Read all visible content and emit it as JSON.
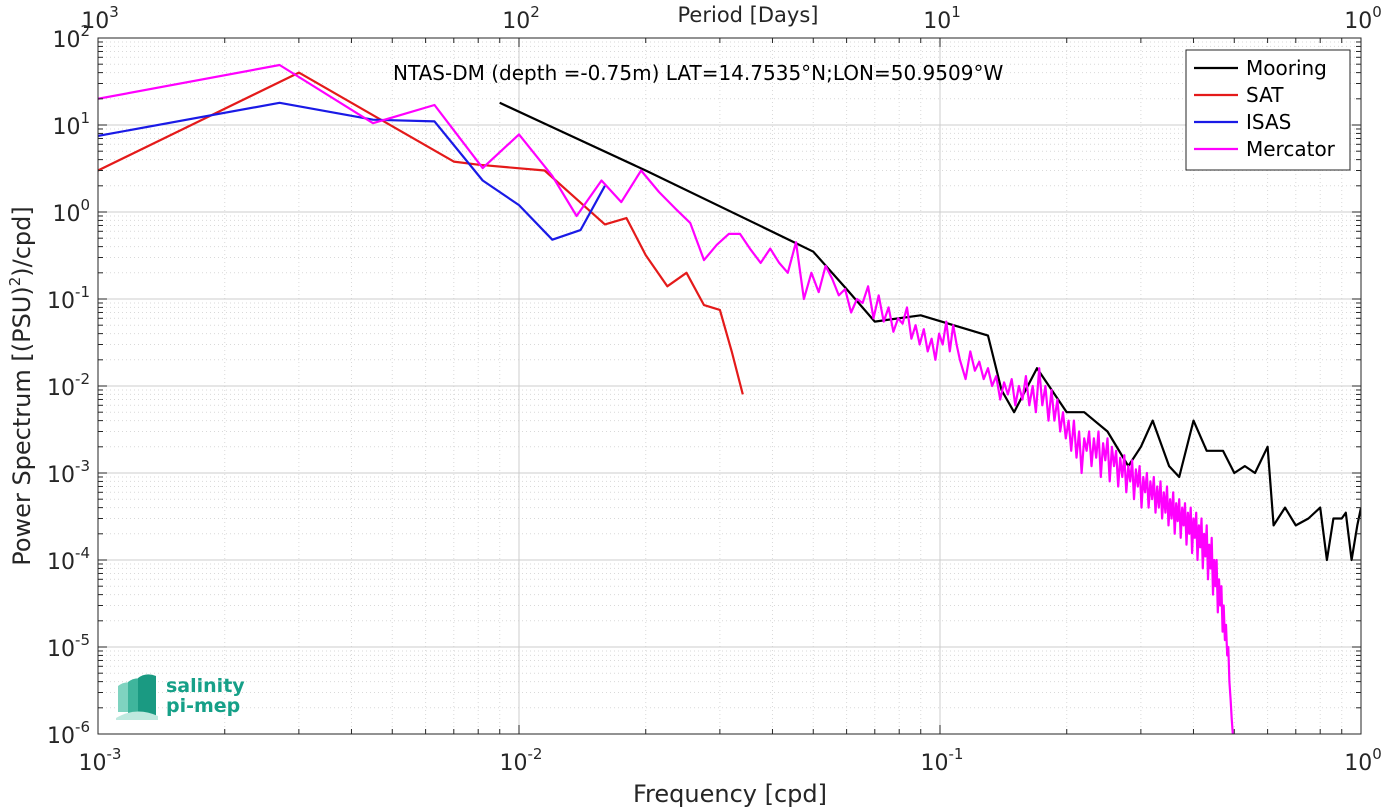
{
  "chart_data": {
    "type": "line",
    "scale": {
      "x": "log",
      "y": "log"
    },
    "xlabel": "Frequency [cpd]",
    "top_xlabel": "Period [Days]",
    "ylabel_prefix": "Power Spectrum [(PSU)",
    "ylabel_exp": "2",
    "ylabel_suffix": ")/cpd]",
    "annotation": "NTAS-DM (depth =-0.75m) LAT=14.7535°N;LON=50.9509°W",
    "xlim": [
      0.001,
      1
    ],
    "ylim": [
      1e-06,
      100
    ],
    "grid": true,
    "minor_grid": true,
    "legend_position": "top-right",
    "x_ticks": [
      {
        "base": "10",
        "exp": "-3"
      },
      {
        "base": "10",
        "exp": "-2"
      },
      {
        "base": "10",
        "exp": "-1"
      },
      {
        "base": "10",
        "exp": "0"
      }
    ],
    "top_ticks": [
      {
        "base": "10",
        "exp": "3"
      },
      {
        "base": "10",
        "exp": "2"
      },
      {
        "base": "10",
        "exp": "1"
      },
      {
        "base": "10",
        "exp": "0"
      }
    ],
    "y_ticks": [
      {
        "base": "10",
        "exp": "-6"
      },
      {
        "base": "10",
        "exp": "-5"
      },
      {
        "base": "10",
        "exp": "-4"
      },
      {
        "base": "10",
        "exp": "-3"
      },
      {
        "base": "10",
        "exp": "-2"
      },
      {
        "base": "10",
        "exp": "-1"
      },
      {
        "base": "10",
        "exp": "0"
      },
      {
        "base": "10",
        "exp": "1"
      },
      {
        "base": "10",
        "exp": "2"
      }
    ],
    "series": [
      {
        "name": "Mooring",
        "color": "#000000",
        "points": [
          [
            0.009,
            18
          ],
          [
            0.02,
            3.0
          ],
          [
            0.045,
            0.45
          ],
          [
            0.05,
            0.35
          ],
          [
            0.06,
            0.13
          ],
          [
            0.07,
            0.055
          ],
          [
            0.09,
            0.065
          ],
          [
            0.13,
            0.038
          ],
          [
            0.14,
            0.009
          ],
          [
            0.15,
            0.005
          ],
          [
            0.17,
            0.016
          ],
          [
            0.2,
            0.005
          ],
          [
            0.22,
            0.005
          ],
          [
            0.25,
            0.003
          ],
          [
            0.28,
            0.0012
          ],
          [
            0.3,
            0.002
          ],
          [
            0.32,
            0.004
          ],
          [
            0.35,
            0.0012
          ],
          [
            0.37,
            0.0009
          ],
          [
            0.4,
            0.004
          ],
          [
            0.43,
            0.0018
          ],
          [
            0.47,
            0.0018
          ],
          [
            0.5,
            0.001
          ],
          [
            0.53,
            0.0012
          ],
          [
            0.56,
            0.001
          ],
          [
            0.6,
            0.002
          ],
          [
            0.62,
            0.00025
          ],
          [
            0.66,
            0.0004
          ],
          [
            0.7,
            0.00025
          ],
          [
            0.75,
            0.0003
          ],
          [
            0.8,
            0.0004
          ],
          [
            0.83,
            0.0001
          ],
          [
            0.86,
            0.0003
          ],
          [
            0.9,
            0.0003
          ],
          [
            0.92,
            0.00035
          ],
          [
            0.95,
            0.0001
          ],
          [
            0.98,
            0.00025
          ],
          [
            1.0,
            0.0004
          ]
        ]
      },
      {
        "name": "SAT",
        "color": "#e41a1a",
        "points": [
          [
            0.001,
            3.0
          ],
          [
            0.003,
            40
          ],
          [
            0.007,
            3.8
          ],
          [
            0.008,
            3.5
          ],
          [
            0.0115,
            3.0
          ],
          [
            0.0135,
            1.5
          ],
          [
            0.016,
            0.72
          ],
          [
            0.018,
            0.85
          ],
          [
            0.02,
            0.32
          ],
          [
            0.0225,
            0.14
          ],
          [
            0.025,
            0.2
          ],
          [
            0.0275,
            0.085
          ],
          [
            0.03,
            0.075
          ],
          [
            0.032,
            0.025
          ],
          [
            0.034,
            0.008
          ]
        ]
      },
      {
        "name": "ISAS",
        "color": "#1a1ae6",
        "points": [
          [
            0.001,
            7.5
          ],
          [
            0.0027,
            18
          ],
          [
            0.0045,
            11.5
          ],
          [
            0.0063,
            11
          ],
          [
            0.0082,
            2.3
          ],
          [
            0.01,
            1.2
          ],
          [
            0.012,
            0.48
          ],
          [
            0.014,
            0.62
          ],
          [
            0.016,
            2.0
          ]
        ]
      },
      {
        "name": "Mercator",
        "color": "#ff00ff",
        "points": [
          [
            0.001,
            20
          ],
          [
            0.0027,
            49
          ],
          [
            0.0045,
            10.5
          ],
          [
            0.0063,
            17
          ],
          [
            0.0082,
            3.2
          ],
          [
            0.01,
            7.8
          ],
          [
            0.012,
            2.6
          ],
          [
            0.0137,
            0.9
          ],
          [
            0.0157,
            2.3
          ],
          [
            0.0175,
            1.3
          ],
          [
            0.0195,
            3.0
          ],
          [
            0.0215,
            1.7
          ],
          [
            0.0235,
            1.1
          ],
          [
            0.0255,
            0.75
          ],
          [
            0.0275,
            0.28
          ],
          [
            0.0295,
            0.42
          ],
          [
            0.0315,
            0.56
          ],
          [
            0.0335,
            0.56
          ],
          [
            0.0355,
            0.37
          ],
          [
            0.0375,
            0.26
          ],
          [
            0.0395,
            0.38
          ],
          [
            0.0415,
            0.26
          ],
          [
            0.0435,
            0.2
          ],
          [
            0.0455,
            0.45
          ],
          [
            0.0475,
            0.1
          ],
          [
            0.0495,
            0.2
          ],
          [
            0.0515,
            0.12
          ],
          [
            0.0535,
            0.24
          ],
          [
            0.0555,
            0.17
          ],
          [
            0.0575,
            0.11
          ],
          [
            0.0595,
            0.13
          ],
          [
            0.0615,
            0.07
          ],
          [
            0.0635,
            0.1
          ],
          [
            0.0655,
            0.09
          ],
          [
            0.0675,
            0.14
          ],
          [
            0.0695,
            0.06
          ],
          [
            0.0715,
            0.11
          ],
          [
            0.0735,
            0.055
          ],
          [
            0.0755,
            0.08
          ],
          [
            0.0775,
            0.042
          ],
          [
            0.0795,
            0.06
          ],
          [
            0.0815,
            0.052
          ],
          [
            0.0835,
            0.08
          ],
          [
            0.0855,
            0.035
          ],
          [
            0.0875,
            0.05
          ],
          [
            0.0895,
            0.03
          ],
          [
            0.0915,
            0.045
          ],
          [
            0.0935,
            0.025
          ],
          [
            0.0955,
            0.035
          ],
          [
            0.0975,
            0.02
          ],
          [
            0.0995,
            0.04
          ],
          [
            0.1015,
            0.03
          ],
          [
            0.1035,
            0.055
          ],
          [
            0.1055,
            0.025
          ],
          [
            0.1075,
            0.05
          ],
          [
            0.1095,
            0.03
          ],
          [
            0.1115,
            0.02
          ],
          [
            0.115,
            0.012
          ],
          [
            0.118,
            0.025
          ],
          [
            0.121,
            0.015
          ],
          [
            0.124,
            0.019
          ],
          [
            0.127,
            0.012
          ],
          [
            0.13,
            0.016
          ],
          [
            0.133,
            0.01
          ],
          [
            0.136,
            0.013
          ],
          [
            0.139,
            0.007
          ],
          [
            0.142,
            0.011
          ],
          [
            0.145,
            0.008
          ],
          [
            0.148,
            0.012
          ],
          [
            0.151,
            0.006
          ],
          [
            0.154,
            0.01
          ],
          [
            0.157,
            0.007
          ],
          [
            0.16,
            0.013
          ],
          [
            0.163,
            0.006
          ],
          [
            0.166,
            0.01
          ],
          [
            0.169,
            0.005
          ],
          [
            0.172,
            0.016
          ],
          [
            0.175,
            0.006
          ],
          [
            0.178,
            0.01
          ],
          [
            0.181,
            0.004
          ],
          [
            0.184,
            0.009
          ],
          [
            0.187,
            0.004
          ],
          [
            0.19,
            0.007
          ],
          [
            0.193,
            0.003
          ],
          [
            0.196,
            0.005
          ],
          [
            0.199,
            0.0025
          ],
          [
            0.202,
            0.004
          ],
          [
            0.205,
            0.0018
          ],
          [
            0.208,
            0.004
          ],
          [
            0.211,
            0.0015
          ],
          [
            0.214,
            0.003
          ],
          [
            0.217,
            0.001
          ],
          [
            0.22,
            0.0025
          ],
          [
            0.223,
            0.0018
          ],
          [
            0.226,
            0.003
          ],
          [
            0.229,
            0.0012
          ],
          [
            0.232,
            0.0025
          ],
          [
            0.235,
            0.0015
          ],
          [
            0.238,
            0.003
          ],
          [
            0.241,
            0.0009
          ],
          [
            0.244,
            0.0022
          ],
          [
            0.247,
            0.0014
          ],
          [
            0.25,
            0.0025
          ],
          [
            0.253,
            0.0008
          ],
          [
            0.256,
            0.002
          ],
          [
            0.259,
            0.0012
          ],
          [
            0.262,
            0.0018
          ],
          [
            0.265,
            0.0007
          ],
          [
            0.268,
            0.0015
          ],
          [
            0.271,
            0.0009
          ],
          [
            0.274,
            0.0016
          ],
          [
            0.277,
            0.0006
          ],
          [
            0.28,
            0.0012
          ],
          [
            0.283,
            0.0008
          ],
          [
            0.286,
            0.0014
          ],
          [
            0.289,
            0.0005
          ],
          [
            0.292,
            0.0011
          ],
          [
            0.295,
            0.0007
          ],
          [
            0.298,
            0.0012
          ],
          [
            0.301,
            0.0004
          ],
          [
            0.304,
            0.0009
          ],
          [
            0.307,
            0.0006
          ],
          [
            0.31,
            0.001
          ],
          [
            0.313,
            0.0004
          ],
          [
            0.316,
            0.0008
          ],
          [
            0.319,
            0.0005
          ],
          [
            0.322,
            0.0009
          ],
          [
            0.325,
            0.00035
          ],
          [
            0.328,
            0.0007
          ],
          [
            0.331,
            0.0004
          ],
          [
            0.334,
            0.0008
          ],
          [
            0.337,
            0.0003
          ],
          [
            0.34,
            0.0006
          ],
          [
            0.343,
            0.00035
          ],
          [
            0.346,
            0.0007
          ],
          [
            0.349,
            0.00025
          ],
          [
            0.352,
            0.0005
          ],
          [
            0.355,
            0.0003
          ],
          [
            0.358,
            0.0006
          ],
          [
            0.361,
            0.0002
          ],
          [
            0.364,
            0.00045
          ],
          [
            0.367,
            0.00028
          ],
          [
            0.37,
            0.0005
          ],
          [
            0.373,
            0.00018
          ],
          [
            0.376,
            0.0004
          ],
          [
            0.379,
            0.00025
          ],
          [
            0.382,
            0.00045
          ],
          [
            0.385,
            0.00015
          ],
          [
            0.388,
            0.00035
          ],
          [
            0.391,
            0.0002
          ],
          [
            0.394,
            0.0004
          ],
          [
            0.397,
            0.00012
          ],
          [
            0.4,
            0.0003
          ],
          [
            0.403,
            0.00018
          ],
          [
            0.406,
            0.00035
          ],
          [
            0.409,
            0.0001
          ],
          [
            0.412,
            0.00025
          ],
          [
            0.415,
            0.00014
          ],
          [
            0.418,
            0.0003
          ],
          [
            0.421,
            8e-05
          ],
          [
            0.424,
            0.0002
          ],
          [
            0.427,
            0.00011
          ],
          [
            0.43,
            0.00025
          ],
          [
            0.433,
            6e-05
          ],
          [
            0.436,
            0.00015
          ],
          [
            0.439,
            8e-05
          ],
          [
            0.442,
            0.00018
          ],
          [
            0.445,
            4e-05
          ],
          [
            0.448,
            0.0001
          ],
          [
            0.451,
            5e-05
          ],
          [
            0.454,
            0.0001
          ],
          [
            0.457,
            2.5e-05
          ],
          [
            0.46,
            6e-05
          ],
          [
            0.463,
            3e-05
          ],
          [
            0.466,
            5e-05
          ],
          [
            0.469,
            1.5e-05
          ],
          [
            0.472,
            3e-05
          ],
          [
            0.475,
            1.2e-05
          ],
          [
            0.478,
            1.8e-05
          ],
          [
            0.481,
            8e-06
          ],
          [
            0.484,
            1e-05
          ],
          [
            0.487,
            4e-06
          ],
          [
            0.49,
            2.5e-06
          ],
          [
            0.493,
            1.5e-06
          ],
          [
            0.496,
            1e-06
          ]
        ]
      }
    ]
  },
  "logo": {
    "line1": "salinity",
    "line2": "pi-mep"
  }
}
